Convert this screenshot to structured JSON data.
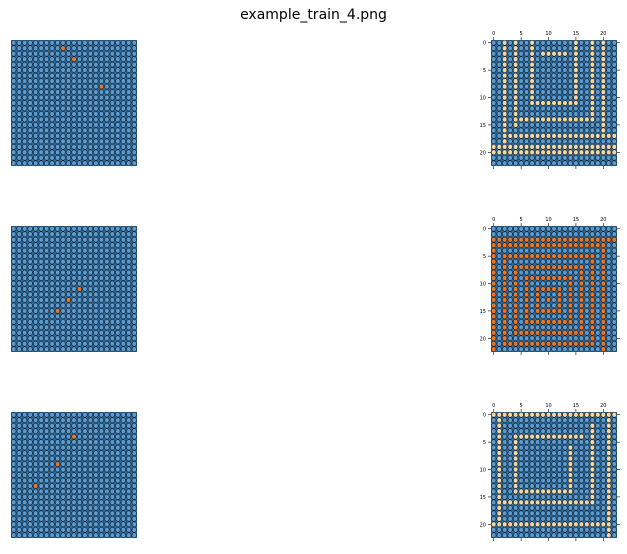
{
  "figure": {
    "title": "example_train_4.png"
  },
  "colors": {
    "background": "#2d6a9a",
    "cell": "#5b9bd0",
    "cell_edge": "#000000",
    "accent_orange": "#e8772a",
    "accent_light": "#f4d7a6",
    "accent_mid": "#d38a54"
  },
  "grid_size": 23,
  "axis_ticks": [
    "0",
    "5",
    "10",
    "15",
    "20"
  ],
  "examples": [
    {
      "input": {
        "marked": [
          [
            1,
            9
          ],
          [
            3,
            11
          ],
          [
            8,
            16
          ]
        ],
        "mark_color": "orange"
      },
      "output": {
        "pattern": "spiral-light"
      }
    },
    {
      "input": {
        "marked": [
          [
            11,
            12
          ],
          [
            13,
            10
          ],
          [
            15,
            8
          ]
        ],
        "mark_color": "orange"
      },
      "output": {
        "pattern": "concentric-orange"
      }
    },
    {
      "input": {
        "marked": [
          [
            4,
            11
          ],
          [
            9,
            8
          ],
          [
            13,
            4
          ]
        ],
        "mark_color": "orange"
      },
      "output": {
        "pattern": "spiral-light-2"
      }
    }
  ]
}
